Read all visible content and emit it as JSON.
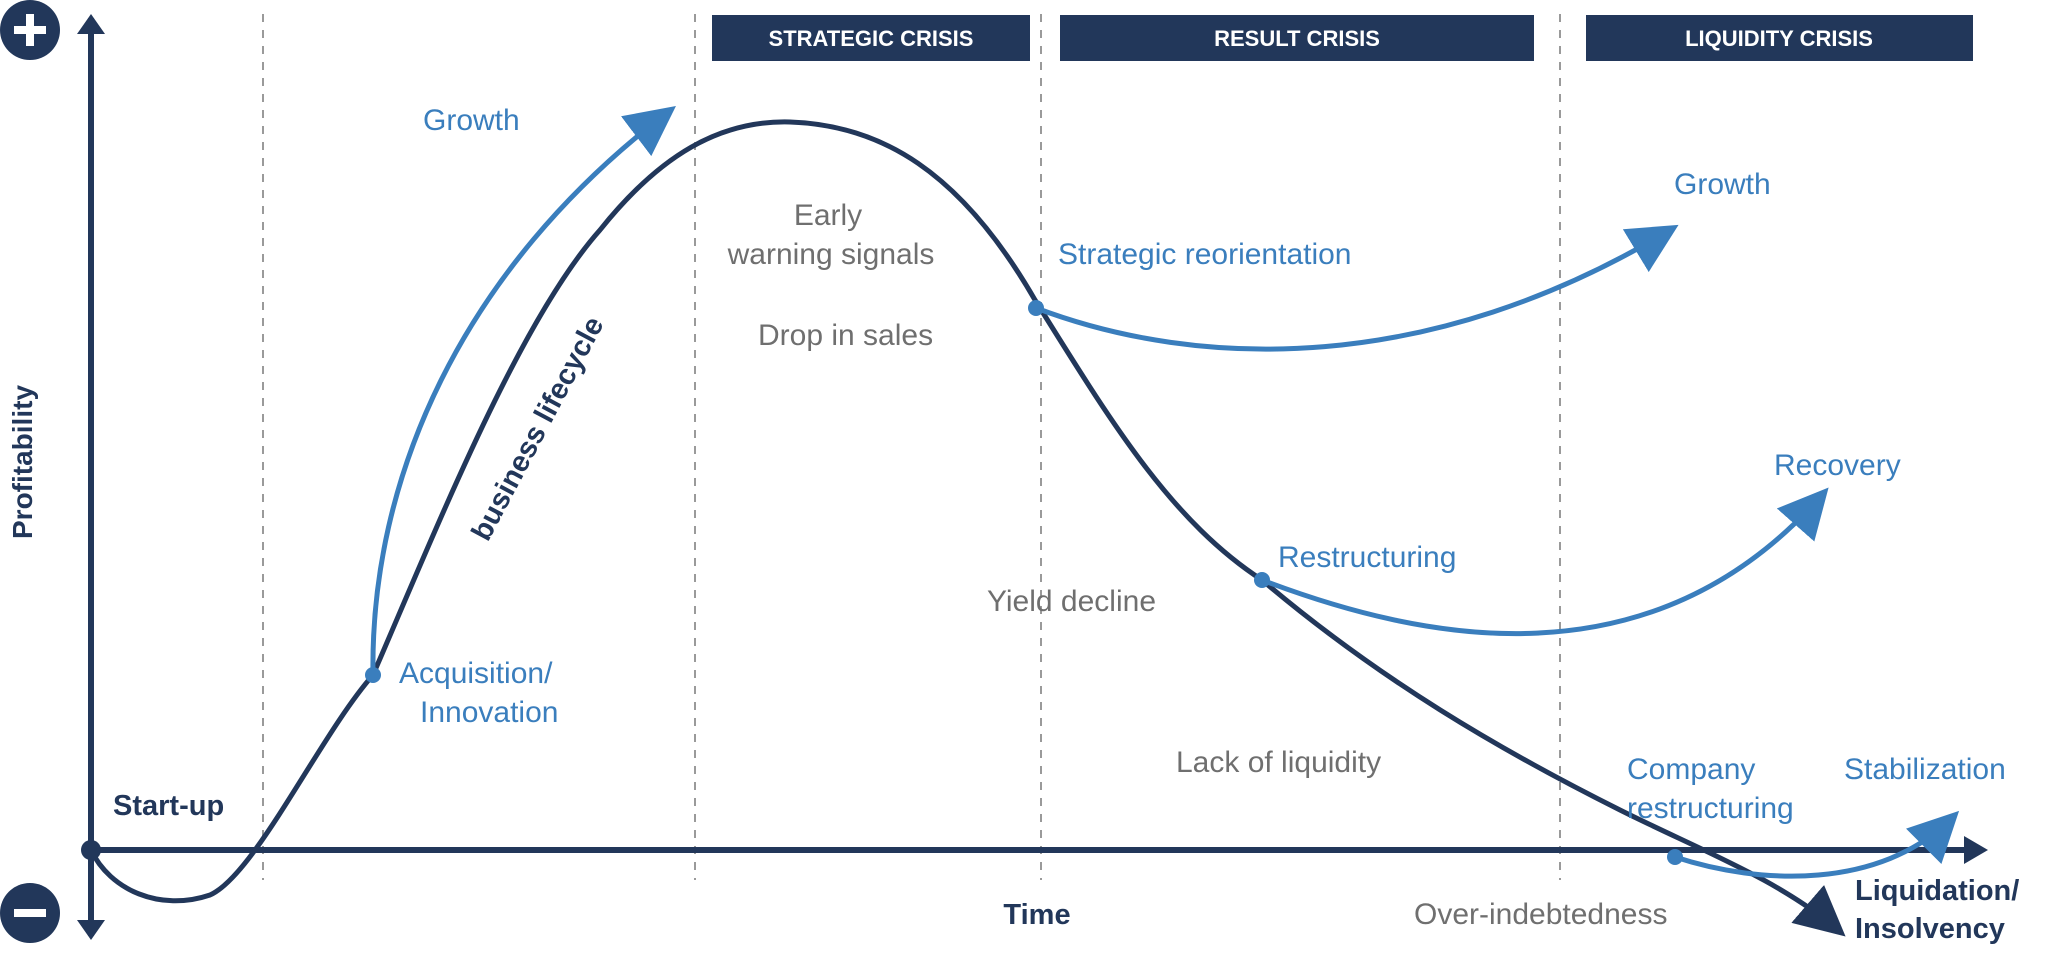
{
  "colors": {
    "navy": "#22375a",
    "blue": "#3a7ebd",
    "gray": "#6f6f6f",
    "dashed": "#9a9a9a"
  },
  "axes": {
    "y_label": "Profitability",
    "x_label": "Time",
    "plus_symbol": "+",
    "minus_symbol": "−"
  },
  "phases": [
    {
      "label": "STRATEGIC CRISIS"
    },
    {
      "label": "RESULT CRISIS"
    },
    {
      "label": "LIQUIDITY CRISIS"
    }
  ],
  "curve_label": "business lifecycle",
  "labels": {
    "startup": "Start-up",
    "growth_1": "Growth",
    "acquisition_1": "Acquisition/",
    "acquisition_2": "Innovation",
    "early_warning_1": "Early",
    "early_warning_2": "warning signals",
    "drop_in_sales": "Drop in sales",
    "strategic_reorientation": "Strategic reorientation",
    "growth_2": "Growth",
    "recovery": "Recovery",
    "restructuring": "Restructuring",
    "yield_decline": "Yield decline",
    "lack_of_liquidity": "Lack of liquidity",
    "company_restructuring_1": "Company",
    "company_restructuring_2": "restructuring",
    "stabilization": "Stabilization",
    "over_indebtedness": "Over-indebtedness",
    "liquidation_1": "Liquidation/",
    "liquidation_2": "Insolvency"
  }
}
